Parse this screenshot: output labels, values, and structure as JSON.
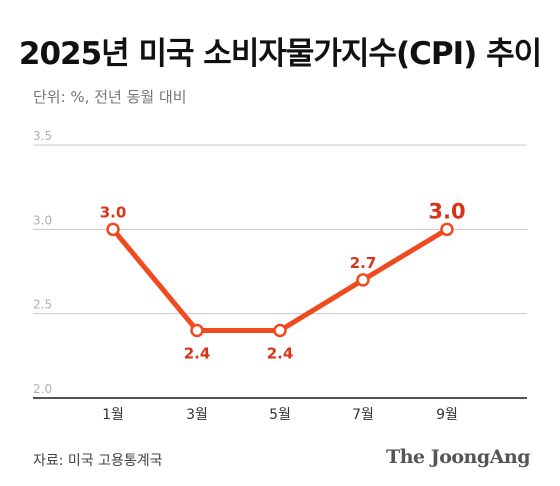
{
  "title": "2025년 미국 소비자물가지수(CPI) 추이",
  "subtitle": "단위: %, 전년 동월 대비",
  "source": "자료: 미국 고용통계국",
  "brand": "The JoongAng",
  "colors": {
    "line": "#f04a1f",
    "label": "#d9331a",
    "grid": "#c8c8c8",
    "axis": "#1a1a1a"
  },
  "chart_data": {
    "type": "line",
    "title": "2025년 미국 소비자물가지수(CPI) 추이",
    "categories": [
      "1월",
      "3월",
      "5월",
      "7월",
      "9월"
    ],
    "series": [
      {
        "values": [
          3.0,
          2.4,
          2.4,
          2.7,
          3.0
        ]
      }
    ],
    "data_labels": [
      "3.0",
      "2.4",
      "2.4",
      "2.7",
      "3.0"
    ],
    "y_ticks": [
      "2.0",
      "2.5",
      "3.0",
      "3.5"
    ],
    "ylim": [
      2.0,
      3.5
    ],
    "grid": true,
    "legend": "none",
    "xlabel": "",
    "ylabel": ""
  }
}
